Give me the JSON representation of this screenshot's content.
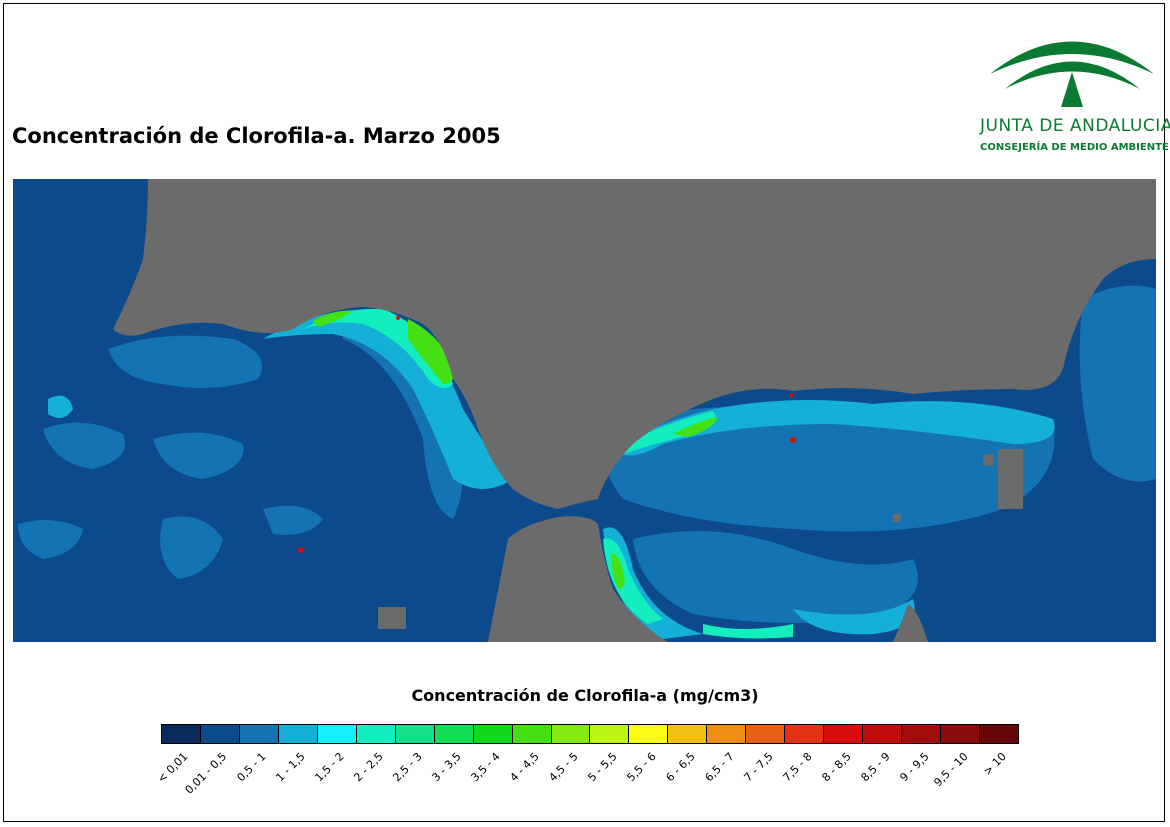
{
  "map": {
    "title": "Concentración de Clorofila-a. Marzo 2005",
    "land_color": "#6b6b6b",
    "ocean_base_color": "#0c4a8c"
  },
  "logo": {
    "name": "JUNTA DE ANDALUCIA",
    "department": "CONSEJERÍA DE MEDIO AMBIENTE",
    "color": "#0a7a32"
  },
  "legend": {
    "title": "Concentración de Clorofila-a (mg/cm3)",
    "classes": [
      {
        "label": "< 0,01",
        "color": "#0a2a5c"
      },
      {
        "label": "0,01 - 0,5",
        "color": "#0c4a8c"
      },
      {
        "label": "0,5 - 1",
        "color": "#1473b2"
      },
      {
        "label": "1 - 1,5",
        "color": "#14b0d8"
      },
      {
        "label": "1,5 - 2",
        "color": "#14f0f8"
      },
      {
        "label": "2 - 2,5",
        "color": "#14eebe"
      },
      {
        "label": "2,5 - 3",
        "color": "#14e08a"
      },
      {
        "label": "3 - 3,5",
        "color": "#14dc56"
      },
      {
        "label": "3,5 - 4",
        "color": "#14d81c"
      },
      {
        "label": "4 - 4,5",
        "color": "#44e014"
      },
      {
        "label": "4,5 - 5",
        "color": "#84ea14"
      },
      {
        "label": "5 - 5,5",
        "color": "#bcf414"
      },
      {
        "label": "5,5 - 6",
        "color": "#fbfb14"
      },
      {
        "label": "6 - 6,5",
        "color": "#f4c014"
      },
      {
        "label": "6,5 - 7",
        "color": "#ee8e14"
      },
      {
        "label": "7 - 7,5",
        "color": "#e86014"
      },
      {
        "label": "7,5 - 8",
        "color": "#e03414"
      },
      {
        "label": "8 - 8,5",
        "color": "#d80c0c"
      },
      {
        "label": "8,5 - 9",
        "color": "#c00c0c"
      },
      {
        "label": "9 - 9,5",
        "color": "#a00c0c"
      },
      {
        "label": "9,5 - 10",
        "color": "#880c0c"
      },
      {
        "label": "> 10",
        "color": "#660606"
      }
    ]
  }
}
